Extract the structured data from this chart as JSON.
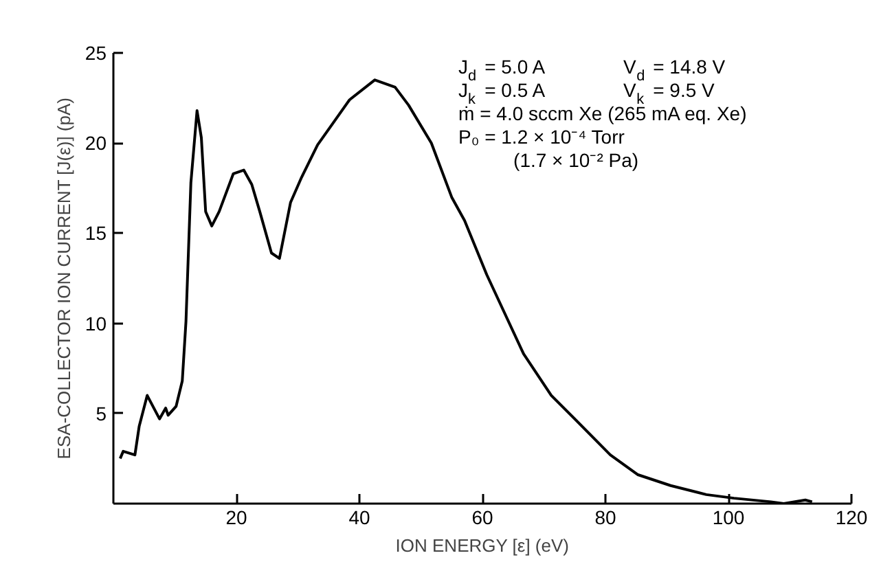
{
  "chart_data": {
    "type": "line",
    "xlabel": "ION ENERGY [ε] (eV)",
    "ylabel": "ESA-COLLECTOR ION CURRENT [J(ε)] (pA)",
    "x": [
      1.1,
      1.6,
      3.5,
      4.2,
      5.5,
      7.5,
      8.5,
      8.9,
      10.2,
      11.2,
      11.8,
      12.6,
      13.6,
      14.3,
      15.0,
      16.0,
      17.2,
      19.5,
      21.2,
      22.5,
      23.8,
      25.7,
      27.0,
      28.8,
      30.6,
      33.2,
      35.5,
      38.4,
      42.5,
      45.8,
      48.0,
      51.7,
      55.0,
      57.1,
      60.7,
      66.7,
      71.2,
      75.0,
      80.8,
      85.3,
      90.6,
      96.4,
      100.9,
      106.9,
      109.0,
      112.5,
      113.6
    ],
    "series": [
      {
        "color": "#000000",
        "values": [
          2.5,
          2.9,
          2.7,
          4.3,
          6.0,
          4.7,
          5.3,
          4.9,
          5.4,
          6.8,
          10.1,
          17.8,
          21.8,
          20.3,
          16.2,
          15.4,
          16.2,
          18.3,
          18.5,
          17.7,
          16.2,
          13.9,
          13.6,
          16.7,
          18.1,
          19.9,
          21.0,
          22.4,
          23.5,
          23.1,
          22.1,
          20.0,
          17.0,
          15.7,
          12.7,
          8.3,
          6.0,
          4.7,
          2.7,
          1.6,
          1.0,
          0.5,
          0.3,
          0.1,
          0.0,
          0.2,
          0.1
        ]
      }
    ],
    "xlim": [
      0,
      120
    ],
    "xticks": [
      20,
      40,
      60,
      80,
      100,
      120
    ],
    "ylim": [
      0,
      25
    ],
    "yticks": [
      5,
      10,
      15,
      20,
      25
    ],
    "grid": false,
    "marker": "none",
    "line_style": "solid",
    "annotations": [
      "J$_{d}$ = 5.0 A",
      "V$_{d}$ = 14.8 V",
      "J$_{k}$ = 0.5 A",
      "V$_{k}$ = 9.5 V",
      "ṁ = 4.0 sccm Xe (265 mA eq. Xe)",
      "P₀ = 1.2 × 10⁻⁴ Torr",
      "(1.7 × 10⁻² Pa)"
    ]
  }
}
